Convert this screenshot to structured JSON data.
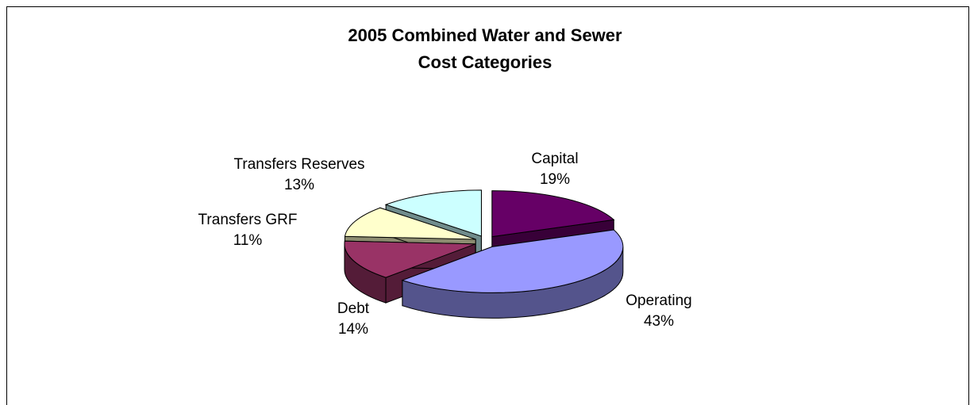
{
  "chart_data": {
    "type": "pie3d",
    "title": [
      "2005 Combined Water and Sewer",
      "Cost Categories"
    ],
    "categories": [
      "Capital",
      "Operating",
      "Debt",
      "Transfers GRF",
      "Transfers Reserves"
    ],
    "values": [
      19,
      43,
      14,
      11,
      13
    ],
    "value_labels": [
      "19%",
      "43%",
      "14%",
      "11%",
      "13%"
    ],
    "colors": [
      "#660066",
      "#9999ff",
      "#993366",
      "#ffffcc",
      "#ccffff"
    ]
  }
}
